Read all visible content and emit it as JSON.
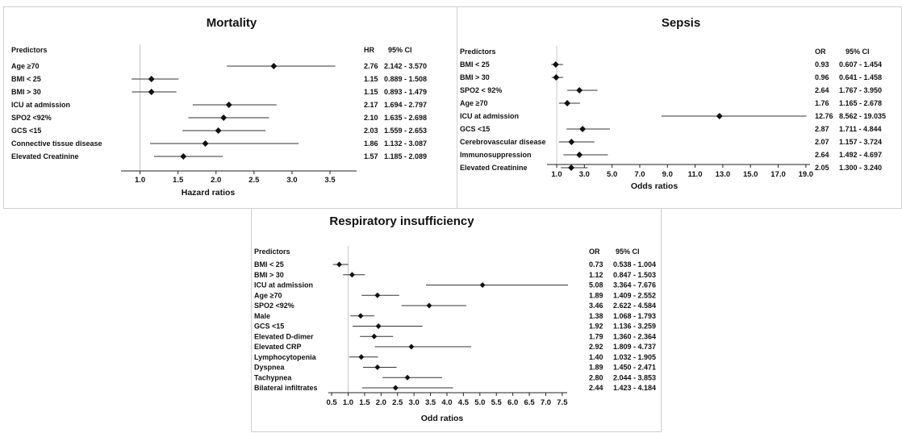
{
  "chart_data": [
    {
      "type": "forest",
      "title": "Mortality",
      "xlabel": "Hazard ratios",
      "headers": {
        "predictors": "Predictors",
        "estimate": "HR",
        "ci": "95% CI"
      },
      "xlim": [
        0.75,
        3.85
      ],
      "ref_line": 1.0,
      "ticks": [
        "1.0",
        "1.5",
        "2.0",
        "2.5",
        "3.0",
        "3.5"
      ],
      "rows": [
        {
          "label": "Age ≥70",
          "est": 2.76,
          "lo": 2.142,
          "hi": 3.57,
          "est_text": "2.76",
          "ci_text": "2.142 - 3.570"
        },
        {
          "label": "BMI < 25",
          "est": 1.15,
          "lo": 0.889,
          "hi": 1.508,
          "est_text": "1.15",
          "ci_text": "0.889 - 1.508"
        },
        {
          "label": "BMI > 30",
          "est": 1.15,
          "lo": 0.893,
          "hi": 1.479,
          "est_text": "1.15",
          "ci_text": "0.893 - 1.479"
        },
        {
          "label": "ICU at admission",
          "est": 2.17,
          "lo": 1.694,
          "hi": 2.797,
          "est_text": "2.17",
          "ci_text": "1.694 - 2.797"
        },
        {
          "label": "SPO2 <92%",
          "est": 2.1,
          "lo": 1.635,
          "hi": 2.698,
          "est_text": "2.10",
          "ci_text": "1.635 - 2.698"
        },
        {
          "label": "GCS <15",
          "est": 2.03,
          "lo": 1.559,
          "hi": 2.653,
          "est_text": "2.03",
          "ci_text": "1.559 - 2.653"
        },
        {
          "label": "Connective tissue disease",
          "est": 1.86,
          "lo": 1.132,
          "hi": 3.087,
          "est_text": "1.86",
          "ci_text": "1.132 - 3.087"
        },
        {
          "label": "Elevated Creatinine",
          "est": 1.57,
          "lo": 1.185,
          "hi": 2.089,
          "est_text": "1.57",
          "ci_text": "1.185 - 2.089"
        }
      ]
    },
    {
      "type": "forest",
      "title": "Sepsis",
      "xlabel": "Odds ratios",
      "headers": {
        "predictors": "Predictors",
        "estimate": "OR",
        "ci": "95% CI"
      },
      "xlim": [
        0.3,
        19.3
      ],
      "ref_line": 1.0,
      "ticks": [
        "1.0",
        "3.0",
        "5.0",
        "7.0",
        "9.0",
        "11.0",
        "13.0",
        "15.0",
        "17.0",
        "19.0"
      ],
      "rows": [
        {
          "label": "BMI < 25",
          "est": 0.93,
          "lo": 0.607,
          "hi": 1.454,
          "est_text": "0.93",
          "ci_text": "0.607 - 1.454"
        },
        {
          "label": "BMI > 30",
          "est": 0.96,
          "lo": 0.641,
          "hi": 1.458,
          "est_text": "0.96",
          "ci_text": "0.641 - 1.458"
        },
        {
          "label": "SPO2 < 92%",
          "est": 2.64,
          "lo": 1.767,
          "hi": 3.95,
          "est_text": "2.64",
          "ci_text": "1.767 - 3.950"
        },
        {
          "label": "Age ≥70",
          "est": 1.76,
          "lo": 1.165,
          "hi": 2.678,
          "est_text": "1.76",
          "ci_text": "1.165 - 2.678"
        },
        {
          "label": "ICU at admission",
          "est": 12.76,
          "lo": 8.562,
          "hi": 19.035,
          "est_text": "12.76",
          "ci_text": "8.562 - 19.035"
        },
        {
          "label": "GCS <15",
          "est": 2.87,
          "lo": 1.711,
          "hi": 4.844,
          "est_text": "2.87",
          "ci_text": "1.711 - 4.844"
        },
        {
          "label": "Cerebrovascular disease",
          "est": 2.07,
          "lo": 1.157,
          "hi": 3.724,
          "est_text": "2.07",
          "ci_text": "1.157 - 3.724"
        },
        {
          "label": "Immunosuppression",
          "est": 2.64,
          "lo": 1.492,
          "hi": 4.697,
          "est_text": "2.64",
          "ci_text": "1.492 - 4.697"
        },
        {
          "label": "Elevated Creatinine",
          "est": 2.05,
          "lo": 1.3,
          "hi": 3.24,
          "est_text": "2.05",
          "ci_text": "1.300 - 3.240"
        }
      ]
    },
    {
      "type": "forest",
      "title": "Respiratory insufficiency",
      "xlabel": "Odd ratios",
      "headers": {
        "predictors": "Predictors",
        "estimate": "OR",
        "ci": "95% CI"
      },
      "xlim": [
        0.4,
        7.65
      ],
      "ref_line": 1.0,
      "ticks": [
        "0.5",
        "1.0",
        "1.5",
        "2.0",
        "2.5",
        "3.0",
        "3.5",
        "4.0",
        "4.5",
        "5.0",
        "5.5",
        "6.0",
        "6.5",
        "7.0",
        "7.5"
      ],
      "rows": [
        {
          "label": "BMI < 25",
          "est": 0.73,
          "lo": 0.538,
          "hi": 1.004,
          "est_text": "0.73",
          "ci_text": "0.538 - 1.004"
        },
        {
          "label": "BMI > 30",
          "est": 1.12,
          "lo": 0.847,
          "hi": 1.503,
          "est_text": "1.12",
          "ci_text": "0.847 - 1.503"
        },
        {
          "label": "ICU at admission",
          "est": 5.08,
          "lo": 3.364,
          "hi": 7.676,
          "est_text": "5.08",
          "ci_text": "3.364 - 7.676"
        },
        {
          "label": "Age ≥70",
          "est": 1.89,
          "lo": 1.409,
          "hi": 2.552,
          "est_text": "1.89",
          "ci_text": "1.409 - 2.552"
        },
        {
          "label": "SPO2 <92%",
          "est": 3.46,
          "lo": 2.622,
          "hi": 4.584,
          "est_text": "3.46",
          "ci_text": "2.622 - 4.584"
        },
        {
          "label": "Male",
          "est": 1.38,
          "lo": 1.068,
          "hi": 1.793,
          "est_text": "1.38",
          "ci_text": "1.068 - 1.793"
        },
        {
          "label": "GCS <15",
          "est": 1.92,
          "lo": 1.136,
          "hi": 3.259,
          "est_text": "1.92",
          "ci_text": "1.136 - 3.259"
        },
        {
          "label": "Elevated D-dimer",
          "est": 1.79,
          "lo": 1.36,
          "hi": 2.364,
          "est_text": "1.79",
          "ci_text": "1.360 - 2.364"
        },
        {
          "label": "Elevated CRP",
          "est": 2.92,
          "lo": 1.809,
          "hi": 4.737,
          "est_text": "2.92",
          "ci_text": "1.809 - 4.737"
        },
        {
          "label": "Lymphocytopenia",
          "est": 1.4,
          "lo": 1.032,
          "hi": 1.905,
          "est_text": "1.40",
          "ci_text": "1.032 - 1.905"
        },
        {
          "label": "Dyspnea",
          "est": 1.89,
          "lo": 1.45,
          "hi": 2.471,
          "est_text": "1.89",
          "ci_text": "1.450 - 2.471"
        },
        {
          "label": "Tachypnea",
          "est": 2.8,
          "lo": 2.044,
          "hi": 3.853,
          "est_text": "2.80",
          "ci_text": "2.044 - 3.853"
        },
        {
          "label": "Bilateral infiltrates",
          "est": 2.44,
          "lo": 1.423,
          "hi": 4.184,
          "est_text": "2.44",
          "ci_text": "1.423 - 4.184"
        }
      ]
    }
  ]
}
